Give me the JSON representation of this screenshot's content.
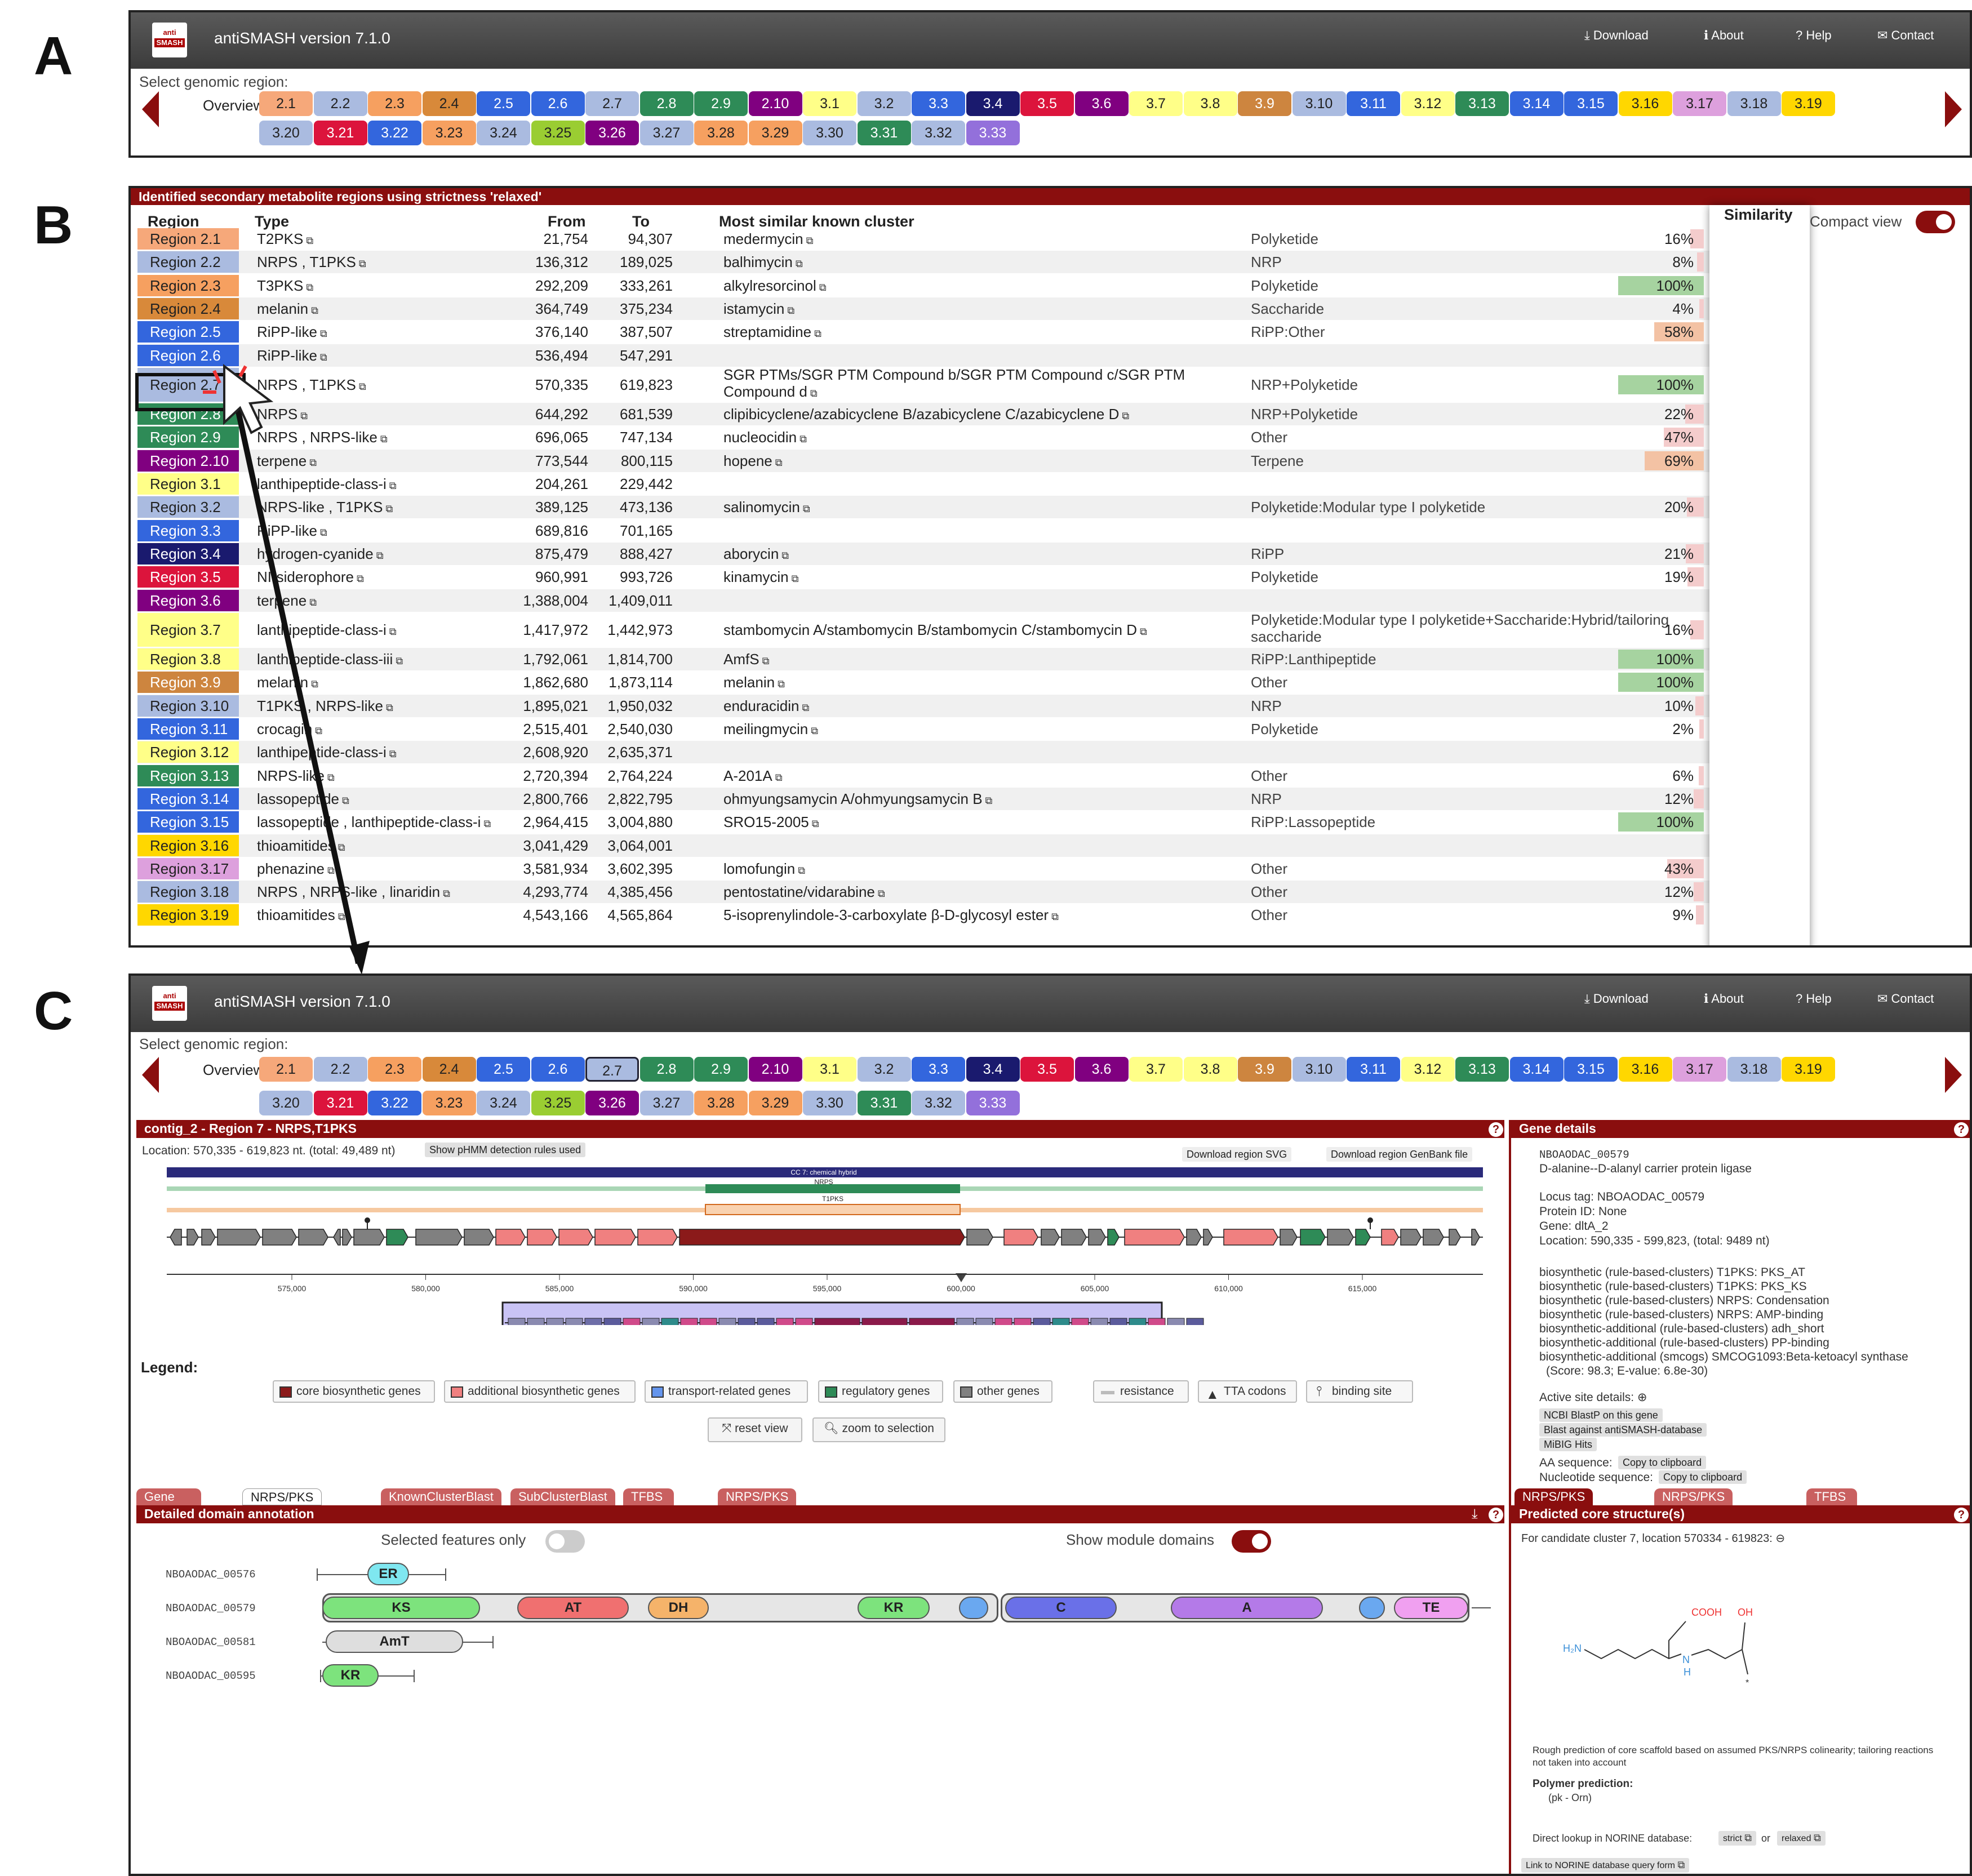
{
  "panels": {
    "a": "A",
    "b": "B",
    "c": "C"
  },
  "app": {
    "title": "antiSMASH version 7.1.0",
    "logo_top": "anti",
    "logo_bottom": "SMASH",
    "nav": [
      "Download",
      "About",
      "Help",
      "Contact"
    ]
  },
  "selector": {
    "label": "Select genomic region:",
    "overview": "Overview",
    "row1": [
      [
        "2.1",
        "#f6a87a"
      ],
      [
        "2.2",
        "#aabbe0"
      ],
      [
        "2.3",
        "#f6a060"
      ],
      [
        "2.4",
        "#d8893a"
      ],
      [
        "2.5",
        "#3366dd"
      ],
      [
        "2.6",
        "#3366dd"
      ],
      [
        "2.7",
        "#aabbe0"
      ],
      [
        "2.8",
        "#2e8b57"
      ],
      [
        "2.9",
        "#2e8b57"
      ],
      [
        "2.10",
        "#800080"
      ],
      [
        "3.1",
        "#ffff88"
      ],
      [
        "3.2",
        "#aabbe0"
      ],
      [
        "3.3",
        "#3366dd"
      ],
      [
        "3.4",
        "#1a1a6e"
      ],
      [
        "3.5",
        "#dc143c"
      ],
      [
        "3.6",
        "#800080"
      ],
      [
        "3.7",
        "#ffff88"
      ],
      [
        "3.8",
        "#ffff88"
      ],
      [
        "3.9",
        "#cd853f"
      ],
      [
        "3.10",
        "#aabbe0"
      ],
      [
        "3.11",
        "#3366dd"
      ],
      [
        "3.12",
        "#ffff88"
      ],
      [
        "3.13",
        "#2e8b57"
      ],
      [
        "3.14",
        "#3366dd"
      ],
      [
        "3.15",
        "#3366dd"
      ],
      [
        "3.16",
        "#ffd700"
      ],
      [
        "3.17",
        "#dda0dd"
      ],
      [
        "3.18",
        "#aabbe0"
      ],
      [
        "3.19",
        "#ffd700"
      ]
    ],
    "row2": [
      [
        "3.20",
        "#aabbe0"
      ],
      [
        "3.21",
        "#dc143c"
      ],
      [
        "3.22",
        "#3366dd"
      ],
      [
        "3.23",
        "#f6a060"
      ],
      [
        "3.24",
        "#aabbe0"
      ],
      [
        "3.25",
        "#9acd32"
      ],
      [
        "3.26",
        "#800080"
      ],
      [
        "3.27",
        "#aabbe0"
      ],
      [
        "3.28",
        "#f6a060"
      ],
      [
        "3.29",
        "#f6a060"
      ],
      [
        "3.30",
        "#aabbe0"
      ],
      [
        "3.31",
        "#2e8b57"
      ],
      [
        "3.32",
        "#aabbe0"
      ],
      [
        "3.33",
        "#9370db"
      ]
    ]
  },
  "table": {
    "title": "Identified secondary metabolite regions using strictness 'relaxed'",
    "headers": {
      "region": "Region",
      "type": "Type",
      "from": "From",
      "to": "To",
      "cluster": "Most similar known cluster",
      "similarity": "Similarity"
    },
    "compact": "Compact view",
    "rows": [
      {
        "region": "Region 2.1",
        "color": "#f6a87a",
        "type": "T2PKS",
        "from": "21,754",
        "to": "94,307",
        "cluster": "medermycin",
        "ctype": "Polyketide",
        "sim": "16%",
        "simval": 16
      },
      {
        "region": "Region 2.2",
        "color": "#aabbe0",
        "type": "NRPS , T1PKS",
        "from": "136,312",
        "to": "189,025",
        "cluster": "balhimycin",
        "ctype": "NRP",
        "sim": "8%",
        "simval": 8
      },
      {
        "region": "Region 2.3",
        "color": "#f6a060",
        "type": "T3PKS",
        "from": "292,209",
        "to": "333,261",
        "cluster": "alkylresorcinol",
        "ctype": "Polyketide",
        "sim": "100%",
        "simval": 100
      },
      {
        "region": "Region 2.4",
        "color": "#d8893a",
        "type": "melanin",
        "from": "364,749",
        "to": "375,234",
        "cluster": "istamycin",
        "ctype": "Saccharide",
        "sim": "4%",
        "simval": 4
      },
      {
        "region": "Region 2.5",
        "color": "#3366dd",
        "type": "RiPP-like",
        "from": "376,140",
        "to": "387,507",
        "cluster": "streptamidine",
        "ctype": "RiPP:Other",
        "sim": "58%",
        "simval": 58
      },
      {
        "region": "Region 2.6",
        "color": "#3366dd",
        "type": "RiPP-like",
        "from": "536,494",
        "to": "547,291",
        "cluster": "",
        "ctype": "",
        "sim": "",
        "simval": 0
      },
      {
        "region": "Region 2.7",
        "color": "#aabbe0",
        "type": "NRPS , T1PKS",
        "from": "570,335",
        "to": "619,823",
        "cluster": "SGR PTMs/SGR PTM Compound b/SGR PTM Compound c/SGR PTM",
        "cluster2": "Compound d",
        "ctype": "NRP+Polyketide",
        "sim": "100%",
        "simval": 100
      },
      {
        "region": "Region 2.8",
        "color": "#2e8b57",
        "type": "NRPS",
        "from": "644,292",
        "to": "681,539",
        "cluster": "clipibicyclene/azabicyclene B/azabicyclene C/azabicyclene D",
        "ctype": "NRP+Polyketide",
        "sim": "22%",
        "simval": 22
      },
      {
        "region": "Region 2.9",
        "color": "#2e8b57",
        "type": "NRPS , NRPS-like",
        "from": "696,065",
        "to": "747,134",
        "cluster": "nucleocidin",
        "ctype": "Other",
        "sim": "47%",
        "simval": 47
      },
      {
        "region": "Region 2.10",
        "color": "#800080",
        "type": "terpene",
        "from": "773,544",
        "to": "800,115",
        "cluster": "hopene",
        "ctype": "Terpene",
        "sim": "69%",
        "simval": 69
      },
      {
        "region": "Region 3.1",
        "color": "#ffff88",
        "type": "lanthipeptide-class-i",
        "from": "204,261",
        "to": "229,442",
        "cluster": "",
        "ctype": "",
        "sim": "",
        "simval": 0
      },
      {
        "region": "Region 3.2",
        "color": "#aabbe0",
        "type": "NRPS-like , T1PKS",
        "from": "389,125",
        "to": "473,136",
        "cluster": "salinomycin",
        "ctype": "Polyketide:Modular type I polyketide",
        "sim": "20%",
        "simval": 20
      },
      {
        "region": "Region 3.3",
        "color": "#3366dd",
        "type": "RiPP-like",
        "from": "689,816",
        "to": "701,165",
        "cluster": "",
        "ctype": "",
        "sim": "",
        "simval": 0
      },
      {
        "region": "Region 3.4",
        "color": "#1a1a6e",
        "type": "hydrogen-cyanide",
        "from": "875,479",
        "to": "888,427",
        "cluster": "aborycin",
        "ctype": "RiPP",
        "sim": "21%",
        "simval": 21
      },
      {
        "region": "Region 3.5",
        "color": "#dc143c",
        "type": "NI-siderophore",
        "from": "960,991",
        "to": "993,726",
        "cluster": "kinamycin",
        "ctype": "Polyketide",
        "sim": "19%",
        "simval": 19
      },
      {
        "region": "Region 3.6",
        "color": "#800080",
        "type": "terpene",
        "from": "1,388,004",
        "to": "1,409,011",
        "cluster": "",
        "ctype": "",
        "sim": "",
        "simval": 0
      },
      {
        "region": "Region 3.7",
        "color": "#ffff88",
        "type": "lanthipeptide-class-i",
        "from": "1,417,972",
        "to": "1,442,973",
        "cluster": "stambomycin A/stambomycin B/stambomycin C/stambomycin D",
        "ctype": "Polyketide:Modular type I polyketide+Saccharide:Hybrid/tailoring",
        "ctype2": "saccharide",
        "sim": "16%",
        "simval": 16
      },
      {
        "region": "Region 3.8",
        "color": "#ffff88",
        "type": "lanthipeptide-class-iii",
        "from": "1,792,061",
        "to": "1,814,700",
        "cluster": "AmfS",
        "ctype": "RiPP:Lanthipeptide",
        "sim": "100%",
        "simval": 100
      },
      {
        "region": "Region 3.9",
        "color": "#cd853f",
        "type": "melanin",
        "from": "1,862,680",
        "to": "1,873,114",
        "cluster": "melanin",
        "ctype": "Other",
        "sim": "100%",
        "simval": 100
      },
      {
        "region": "Region 3.10",
        "color": "#aabbe0",
        "type": "T1PKS , NRPS-like",
        "from": "1,895,021",
        "to": "1,950,032",
        "cluster": "enduracidin",
        "ctype": "NRP",
        "sim": "10%",
        "simval": 10
      },
      {
        "region": "Region 3.11",
        "color": "#3366dd",
        "type": "crocagin",
        "from": "2,515,401",
        "to": "2,540,030",
        "cluster": "meilingmycin",
        "ctype": "Polyketide",
        "sim": "2%",
        "simval": 2
      },
      {
        "region": "Region 3.12",
        "color": "#ffff88",
        "type": "lanthipeptide-class-i",
        "from": "2,608,920",
        "to": "2,635,371",
        "cluster": "",
        "ctype": "",
        "sim": "",
        "simval": 0
      },
      {
        "region": "Region 3.13",
        "color": "#2e8b57",
        "type": "NRPS-like",
        "from": "2,720,394",
        "to": "2,764,224",
        "cluster": "A-201A",
        "ctype": "Other",
        "sim": "6%",
        "simval": 6
      },
      {
        "region": "Region 3.14",
        "color": "#3366dd",
        "type": "lassopeptide",
        "from": "2,800,766",
        "to": "2,822,795",
        "cluster": "ohmyungsamycin A/ohmyungsamycin B",
        "ctype": "NRP",
        "sim": "12%",
        "simval": 12
      },
      {
        "region": "Region 3.15",
        "color": "#3366dd",
        "type": "lassopeptide , lanthipeptide-class-i",
        "from": "2,964,415",
        "to": "3,004,880",
        "cluster": "SRO15-2005",
        "ctype": "RiPP:Lassopeptide",
        "sim": "100%",
        "simval": 100
      },
      {
        "region": "Region 3.16",
        "color": "#ffd700",
        "type": "thioamitides",
        "from": "3,041,429",
        "to": "3,064,001",
        "cluster": "",
        "ctype": "",
        "sim": "",
        "simval": 0
      },
      {
        "region": "Region 3.17",
        "color": "#dda0dd",
        "type": "phenazine",
        "from": "3,581,934",
        "to": "3,602,395",
        "cluster": "lomofungin",
        "ctype": "Other",
        "sim": "43%",
        "simval": 43
      },
      {
        "region": "Region 3.18",
        "color": "#aabbe0",
        "type": "NRPS , NRPS-like , linaridin",
        "from": "4,293,774",
        "to": "4,385,456",
        "cluster": "pentostatine/vidarabine",
        "ctype": "Other",
        "sim": "12%",
        "simval": 12
      },
      {
        "region": "Region 3.19",
        "color": "#ffd700",
        "type": "thioamitides",
        "from": "4,543,166",
        "to": "4,565,864",
        "cluster": "5-isoprenylindole-3-carboxylate β-D-glycosyl ester",
        "ctype": "Other",
        "sim": "9%",
        "simval": 9
      }
    ]
  },
  "region_view": {
    "title": "contig_2 - Region 7 - NRPS,T1PKS",
    "location": "Location: 570,335 - 619,823 nt. (total: 49,489 nt)",
    "show_rules": "Show pHMM detection rules used",
    "dl_svg": "Download region SVG",
    "dl_gbk": "Download region GenBank file",
    "cc_label": "CC 7: chemical hybrid",
    "nrps_label": "NRPS",
    "t1pks_label": "T1PKS",
    "ticks": [
      "575,000",
      "580,000",
      "585,000",
      "590,000",
      "595,000",
      "600,000",
      "605,000",
      "610,000",
      "615,000"
    ],
    "legend_title": "Legend:",
    "legend": [
      [
        "core biosynthetic genes",
        "#8b1a1a"
      ],
      [
        "additional biosynthetic genes",
        "#f08080"
      ],
      [
        "transport-related genes",
        "#6495ed"
      ],
      [
        "regulatory genes",
        "#2e8b57"
      ],
      [
        "other genes",
        "#808080"
      ]
    ],
    "legend_extra": [
      "resistance",
      "TTA codons",
      "binding site"
    ],
    "reset": "reset view",
    "zoom": "zoom to selection"
  },
  "gene_details": {
    "header": "Gene details",
    "locus": "NBOAODAC_00579",
    "product": "D-alanine--D-alanyl carrier protein ligase",
    "lines": [
      "Locus tag: NBOAODAC_00579",
      "Protein ID: None",
      "Gene: dltA_2",
      "Location: 590,335 - 599,823, (total: 9489 nt)"
    ],
    "annotations": [
      "biosynthetic (rule-based-clusters) T1PKS: PKS_AT",
      "biosynthetic (rule-based-clusters) T1PKS: PKS_KS",
      "biosynthetic (rule-based-clusters) NRPS: Condensation",
      "biosynthetic (rule-based-clusters) NRPS: AMP-binding",
      "biosynthetic-additional (rule-based-clusters) adh_short",
      "biosynthetic-additional (rule-based-clusters) PP-binding",
      "biosynthetic-additional (smcogs) SMCOG1093:Beta-ketoacyl synthase",
      "(Score: 98.3; E-value: 6.8e-30)"
    ],
    "active_site": "Active site details:",
    "links": [
      "NCBI BlastP on this gene",
      "Blast against antiSMASH-database",
      "MiBIG Hits"
    ],
    "aa_seq": "AA sequence:",
    "nt_seq": "Nucleotide sequence:",
    "copy": "Copy to clipboard"
  },
  "tabs_left": [
    "Gene overview",
    "NRPS/PKS domains",
    "KnownClusterBlast",
    "SubClusterBlast",
    "TFBS Finder",
    "NRPS/PKS modules"
  ],
  "tabs_right": [
    "NRPS/PKS products",
    "NRPS/PKS substrates",
    "TFBS Finder"
  ],
  "domains": {
    "header": "Detailed domain annotation",
    "selected_only": "Selected features only",
    "show_modules": "Show module domains",
    "genes": [
      "NBOAODAC_00576",
      "NBOAODAC_00579",
      "NBOAODAC_00581",
      "NBOAODAC_00595"
    ],
    "labels": {
      "er": "ER",
      "ks": "KS",
      "at": "AT",
      "dh": "DH",
      "kr": "KR",
      "c": "C",
      "a": "A",
      "te": "TE",
      "amt": "AmT",
      "kr2": "KR"
    }
  },
  "core": {
    "header": "Predicted core structure(s)",
    "candidate": "For candidate cluster 7, location 570334 - 619823:",
    "cooh": "COOH",
    "oh": "OH",
    "h2n": "H₂N",
    "n": "N",
    "h": "H",
    "note1": "Rough prediction of core scaffold based on assumed PKS/NRPS colinearity; tailoring reactions",
    "note2": "not taken into account",
    "polymer": "Polymer prediction:",
    "polymer_val": "(pk - Orn)",
    "norine": "Direct lookup in NORINE database:",
    "strict": "strict",
    "or": "or",
    "relaxed": "relaxed",
    "norine_link": "Link to NORINE database query form"
  }
}
